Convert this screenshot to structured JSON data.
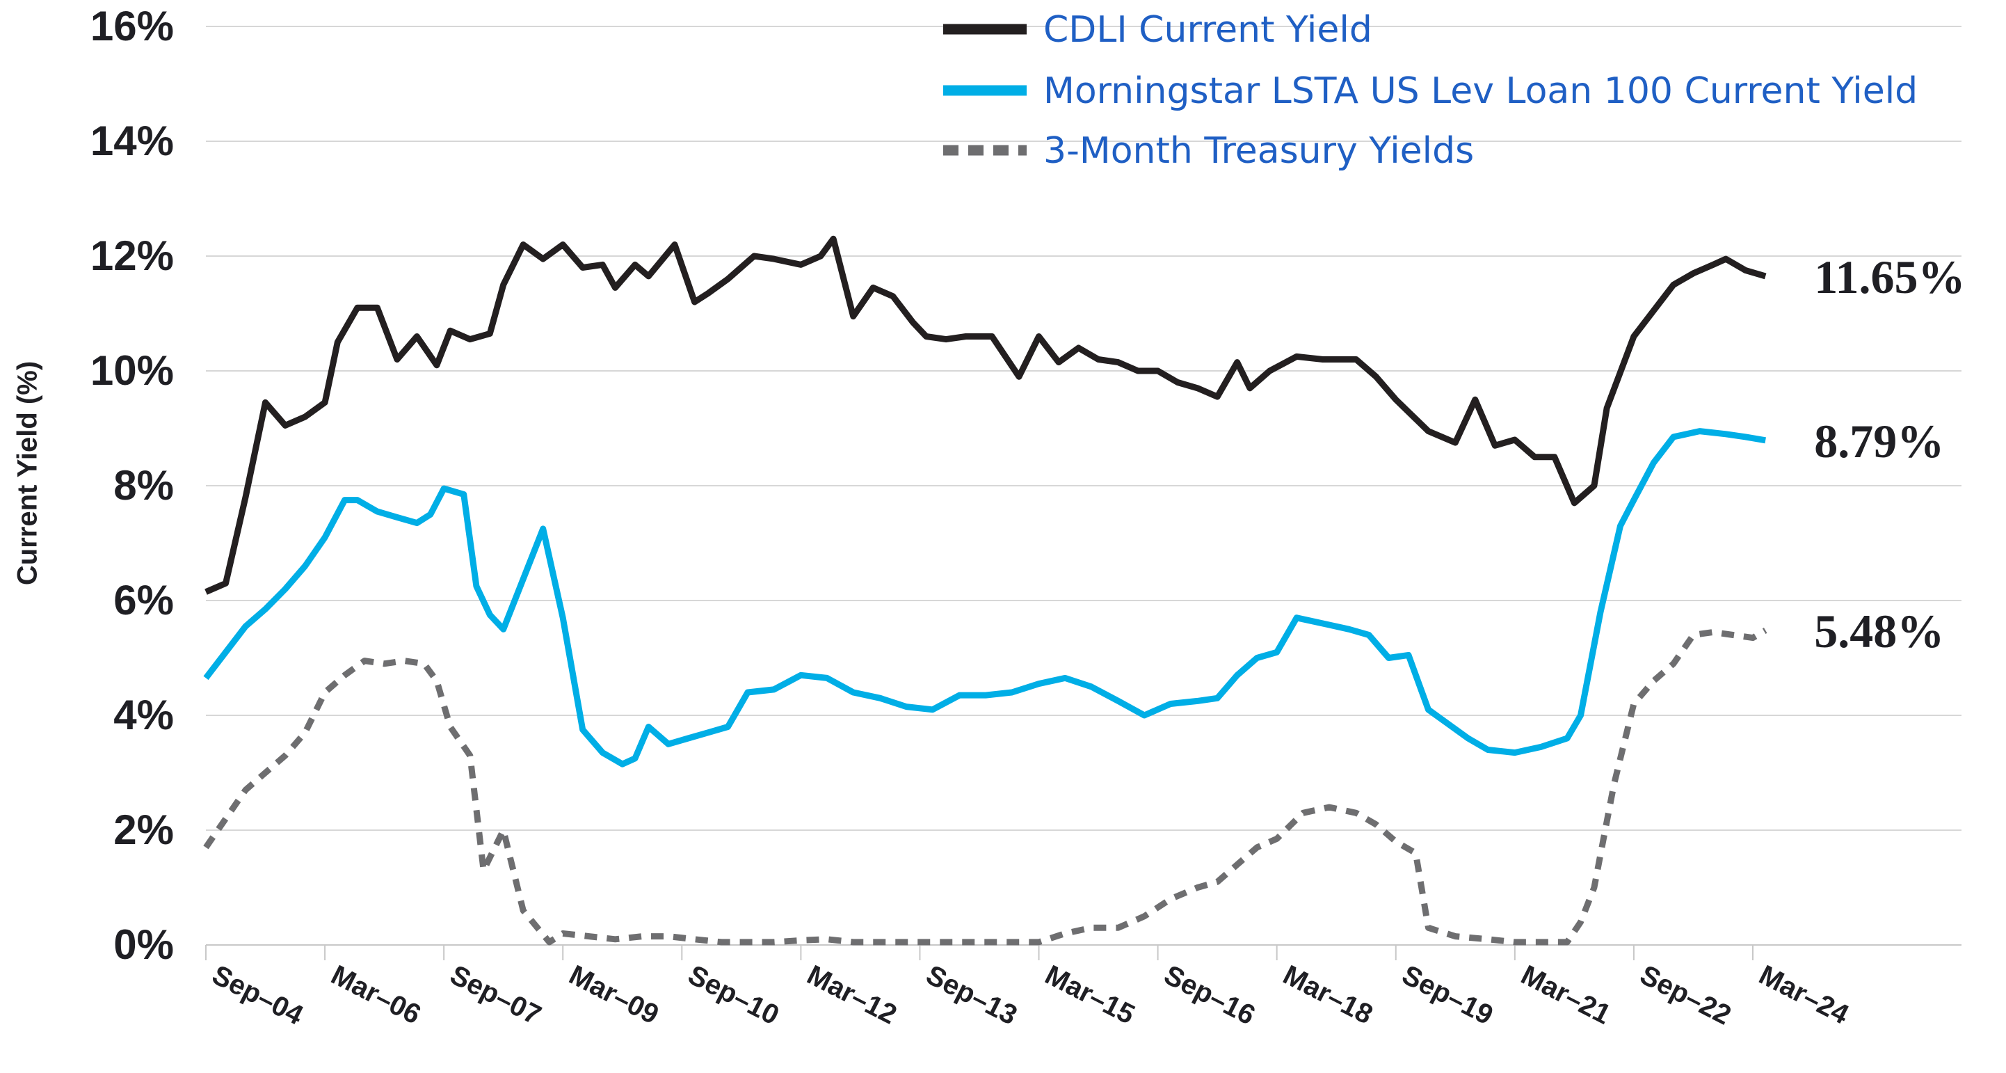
{
  "chart_data": {
    "type": "line",
    "title": "",
    "ylabel": "Current Yield (%)",
    "xlabel": "",
    "ylim": [
      0,
      16
    ],
    "yticks": [
      {
        "value": 0,
        "label": "0%"
      },
      {
        "value": 2,
        "label": "2%"
      },
      {
        "value": 4,
        "label": "4%"
      },
      {
        "value": 6,
        "label": "6%"
      },
      {
        "value": 8,
        "label": "8%"
      },
      {
        "value": 10,
        "label": "10%"
      },
      {
        "value": 12,
        "label": "12%"
      },
      {
        "value": 14,
        "label": "14%"
      },
      {
        "value": 16,
        "label": "16%"
      }
    ],
    "xlim": [
      2004.67,
      2027.0
    ],
    "xticks": [
      {
        "value": 2004.67,
        "label": "Sep-04"
      },
      {
        "value": 2006.17,
        "label": "Mar-06"
      },
      {
        "value": 2007.67,
        "label": "Sep-07"
      },
      {
        "value": 2009.17,
        "label": "Mar-09"
      },
      {
        "value": 2010.67,
        "label": "Sep-10"
      },
      {
        "value": 2012.17,
        "label": "Mar-12"
      },
      {
        "value": 2013.67,
        "label": "Sep-13"
      },
      {
        "value": 2015.17,
        "label": "Mar-15"
      },
      {
        "value": 2016.67,
        "label": "Sep-16"
      },
      {
        "value": 2018.17,
        "label": "Mar-18"
      },
      {
        "value": 2019.67,
        "label": "Sep-19"
      },
      {
        "value": 2021.17,
        "label": "Mar-21"
      },
      {
        "value": 2022.67,
        "label": "Sep-22"
      },
      {
        "value": 2024.17,
        "label": "Mar-24"
      }
    ],
    "legend_position": "top-right",
    "series": [
      {
        "name": "CDLI Current Yield",
        "color": "#231f20",
        "style": "solid",
        "end_label": "11.65%",
        "points": [
          [
            2004.67,
            6.15
          ],
          [
            2004.92,
            6.3
          ],
          [
            2005.17,
            7.8
          ],
          [
            2005.42,
            9.45
          ],
          [
            2005.67,
            9.05
          ],
          [
            2005.92,
            9.2
          ],
          [
            2006.17,
            9.45
          ],
          [
            2006.33,
            10.5
          ],
          [
            2006.58,
            11.1
          ],
          [
            2006.83,
            11.1
          ],
          [
            2007.08,
            10.2
          ],
          [
            2007.33,
            10.6
          ],
          [
            2007.58,
            10.1
          ],
          [
            2007.75,
            10.7
          ],
          [
            2008.0,
            10.55
          ],
          [
            2008.25,
            10.65
          ],
          [
            2008.42,
            11.5
          ],
          [
            2008.67,
            12.2
          ],
          [
            2008.92,
            11.95
          ],
          [
            2009.17,
            12.2
          ],
          [
            2009.42,
            11.8
          ],
          [
            2009.67,
            11.85
          ],
          [
            2009.83,
            11.45
          ],
          [
            2010.08,
            11.85
          ],
          [
            2010.25,
            11.65
          ],
          [
            2010.58,
            12.2
          ],
          [
            2010.83,
            11.2
          ],
          [
            2011.0,
            11.35
          ],
          [
            2011.25,
            11.6
          ],
          [
            2011.58,
            12.0
          ],
          [
            2011.83,
            11.95
          ],
          [
            2012.17,
            11.85
          ],
          [
            2012.42,
            12.0
          ],
          [
            2012.58,
            12.3
          ],
          [
            2012.83,
            10.95
          ],
          [
            2013.08,
            11.45
          ],
          [
            2013.33,
            11.3
          ],
          [
            2013.58,
            10.85
          ],
          [
            2013.75,
            10.6
          ],
          [
            2014.0,
            10.55
          ],
          [
            2014.25,
            10.6
          ],
          [
            2014.58,
            10.6
          ],
          [
            2014.92,
            9.9
          ],
          [
            2015.17,
            10.6
          ],
          [
            2015.42,
            10.15
          ],
          [
            2015.67,
            10.4
          ],
          [
            2015.92,
            10.2
          ],
          [
            2016.17,
            10.15
          ],
          [
            2016.42,
            10.0
          ],
          [
            2016.67,
            10.0
          ],
          [
            2016.92,
            9.8
          ],
          [
            2017.17,
            9.7
          ],
          [
            2017.42,
            9.55
          ],
          [
            2017.67,
            10.15
          ],
          [
            2017.83,
            9.7
          ],
          [
            2018.08,
            10.0
          ],
          [
            2018.42,
            10.25
          ],
          [
            2018.75,
            10.2
          ],
          [
            2019.17,
            10.2
          ],
          [
            2019.42,
            9.9
          ],
          [
            2019.67,
            9.5
          ],
          [
            2020.08,
            8.95
          ],
          [
            2020.42,
            8.75
          ],
          [
            2020.67,
            9.5
          ],
          [
            2020.92,
            8.7
          ],
          [
            2021.17,
            8.8
          ],
          [
            2021.42,
            8.5
          ],
          [
            2021.67,
            8.5
          ],
          [
            2021.92,
            7.7
          ],
          [
            2022.17,
            8.0
          ],
          [
            2022.33,
            9.35
          ],
          [
            2022.67,
            10.6
          ],
          [
            2022.92,
            11.05
          ],
          [
            2023.17,
            11.5
          ],
          [
            2023.42,
            11.7
          ],
          [
            2023.67,
            11.85
          ],
          [
            2023.83,
            11.95
          ],
          [
            2024.08,
            11.75
          ],
          [
            2024.33,
            11.65
          ]
        ]
      },
      {
        "name": "Morningstar LSTA US Lev Loan 100 Current Yield",
        "color": "#00aee6",
        "style": "solid",
        "end_label": "8.79%",
        "points": [
          [
            2004.67,
            4.65
          ],
          [
            2004.92,
            5.1
          ],
          [
            2005.17,
            5.55
          ],
          [
            2005.42,
            5.85
          ],
          [
            2005.67,
            6.2
          ],
          [
            2005.92,
            6.6
          ],
          [
            2006.17,
            7.1
          ],
          [
            2006.42,
            7.75
          ],
          [
            2006.58,
            7.75
          ],
          [
            2006.83,
            7.55
          ],
          [
            2007.08,
            7.45
          ],
          [
            2007.33,
            7.35
          ],
          [
            2007.5,
            7.5
          ],
          [
            2007.67,
            7.95
          ],
          [
            2007.92,
            7.85
          ],
          [
            2008.08,
            6.25
          ],
          [
            2008.25,
            5.75
          ],
          [
            2008.42,
            5.5
          ],
          [
            2008.92,
            7.25
          ],
          [
            2009.17,
            5.7
          ],
          [
            2009.42,
            3.75
          ],
          [
            2009.67,
            3.35
          ],
          [
            2009.92,
            3.15
          ],
          [
            2010.08,
            3.25
          ],
          [
            2010.25,
            3.8
          ],
          [
            2010.5,
            3.5
          ],
          [
            2010.75,
            3.6
          ],
          [
            2011.0,
            3.7
          ],
          [
            2011.25,
            3.8
          ],
          [
            2011.5,
            4.4
          ],
          [
            2011.83,
            4.45
          ],
          [
            2012.17,
            4.7
          ],
          [
            2012.5,
            4.65
          ],
          [
            2012.83,
            4.4
          ],
          [
            2013.17,
            4.3
          ],
          [
            2013.5,
            4.15
          ],
          [
            2013.83,
            4.1
          ],
          [
            2014.17,
            4.35
          ],
          [
            2014.5,
            4.35
          ],
          [
            2014.83,
            4.4
          ],
          [
            2015.17,
            4.55
          ],
          [
            2015.5,
            4.65
          ],
          [
            2015.83,
            4.5
          ],
          [
            2016.17,
            4.25
          ],
          [
            2016.5,
            4.0
          ],
          [
            2016.83,
            4.2
          ],
          [
            2017.17,
            4.25
          ],
          [
            2017.42,
            4.3
          ],
          [
            2017.67,
            4.7
          ],
          [
            2017.92,
            5.0
          ],
          [
            2018.17,
            5.1
          ],
          [
            2018.42,
            5.7
          ],
          [
            2018.75,
            5.6
          ],
          [
            2019.08,
            5.5
          ],
          [
            2019.33,
            5.4
          ],
          [
            2019.58,
            5.0
          ],
          [
            2019.83,
            5.05
          ],
          [
            2020.08,
            4.1
          ],
          [
            2020.33,
            3.85
          ],
          [
            2020.58,
            3.6
          ],
          [
            2020.83,
            3.4
          ],
          [
            2021.17,
            3.35
          ],
          [
            2021.5,
            3.45
          ],
          [
            2021.83,
            3.6
          ],
          [
            2022.0,
            4.0
          ],
          [
            2022.25,
            5.8
          ],
          [
            2022.5,
            7.3
          ],
          [
            2022.67,
            7.75
          ],
          [
            2022.92,
            8.4
          ],
          [
            2023.17,
            8.85
          ],
          [
            2023.5,
            8.95
          ],
          [
            2023.83,
            8.9
          ],
          [
            2024.08,
            8.85
          ],
          [
            2024.33,
            8.79
          ]
        ]
      },
      {
        "name": "3-Month Treasury Yields",
        "color": "#6e6e70",
        "style": "dashed",
        "end_label": "5.48%",
        "points": [
          [
            2004.67,
            1.7
          ],
          [
            2004.92,
            2.2
          ],
          [
            2005.17,
            2.7
          ],
          [
            2005.42,
            3.0
          ],
          [
            2005.67,
            3.3
          ],
          [
            2005.92,
            3.7
          ],
          [
            2006.17,
            4.4
          ],
          [
            2006.42,
            4.7
          ],
          [
            2006.67,
            4.95
          ],
          [
            2006.92,
            4.9
          ],
          [
            2007.17,
            4.95
          ],
          [
            2007.42,
            4.9
          ],
          [
            2007.58,
            4.6
          ],
          [
            2007.75,
            3.8
          ],
          [
            2008.0,
            3.3
          ],
          [
            2008.17,
            1.3
          ],
          [
            2008.42,
            2.0
          ],
          [
            2008.67,
            0.6
          ],
          [
            2009.0,
            0.05
          ],
          [
            2009.17,
            0.2
          ],
          [
            2009.5,
            0.15
          ],
          [
            2009.83,
            0.1
          ],
          [
            2010.17,
            0.15
          ],
          [
            2010.5,
            0.15
          ],
          [
            2010.83,
            0.1
          ],
          [
            2011.17,
            0.05
          ],
          [
            2011.5,
            0.05
          ],
          [
            2011.83,
            0.05
          ],
          [
            2012.17,
            0.08
          ],
          [
            2012.5,
            0.1
          ],
          [
            2012.83,
            0.05
          ],
          [
            2013.17,
            0.05
          ],
          [
            2013.5,
            0.05
          ],
          [
            2013.83,
            0.05
          ],
          [
            2014.17,
            0.05
          ],
          [
            2014.5,
            0.05
          ],
          [
            2014.83,
            0.05
          ],
          [
            2015.17,
            0.05
          ],
          [
            2015.5,
            0.2
          ],
          [
            2015.83,
            0.3
          ],
          [
            2016.17,
            0.3
          ],
          [
            2016.5,
            0.5
          ],
          [
            2016.83,
            0.8
          ],
          [
            2017.17,
            1.0
          ],
          [
            2017.42,
            1.1
          ],
          [
            2017.67,
            1.4
          ],
          [
            2017.92,
            1.7
          ],
          [
            2018.17,
            1.85
          ],
          [
            2018.5,
            2.3
          ],
          [
            2018.83,
            2.4
          ],
          [
            2019.17,
            2.3
          ],
          [
            2019.42,
            2.1
          ],
          [
            2019.67,
            1.8
          ],
          [
            2019.92,
            1.6
          ],
          [
            2020.08,
            0.3
          ],
          [
            2020.42,
            0.15
          ],
          [
            2020.83,
            0.1
          ],
          [
            2021.17,
            0.05
          ],
          [
            2021.5,
            0.05
          ],
          [
            2021.83,
            0.05
          ],
          [
            2022.0,
            0.4
          ],
          [
            2022.17,
            1.0
          ],
          [
            2022.42,
            2.8
          ],
          [
            2022.67,
            4.2
          ],
          [
            2022.92,
            4.6
          ],
          [
            2023.17,
            4.9
          ],
          [
            2023.42,
            5.4
          ],
          [
            2023.67,
            5.45
          ],
          [
            2023.92,
            5.4
          ],
          [
            2024.17,
            5.35
          ],
          [
            2024.33,
            5.48
          ]
        ]
      }
    ]
  }
}
